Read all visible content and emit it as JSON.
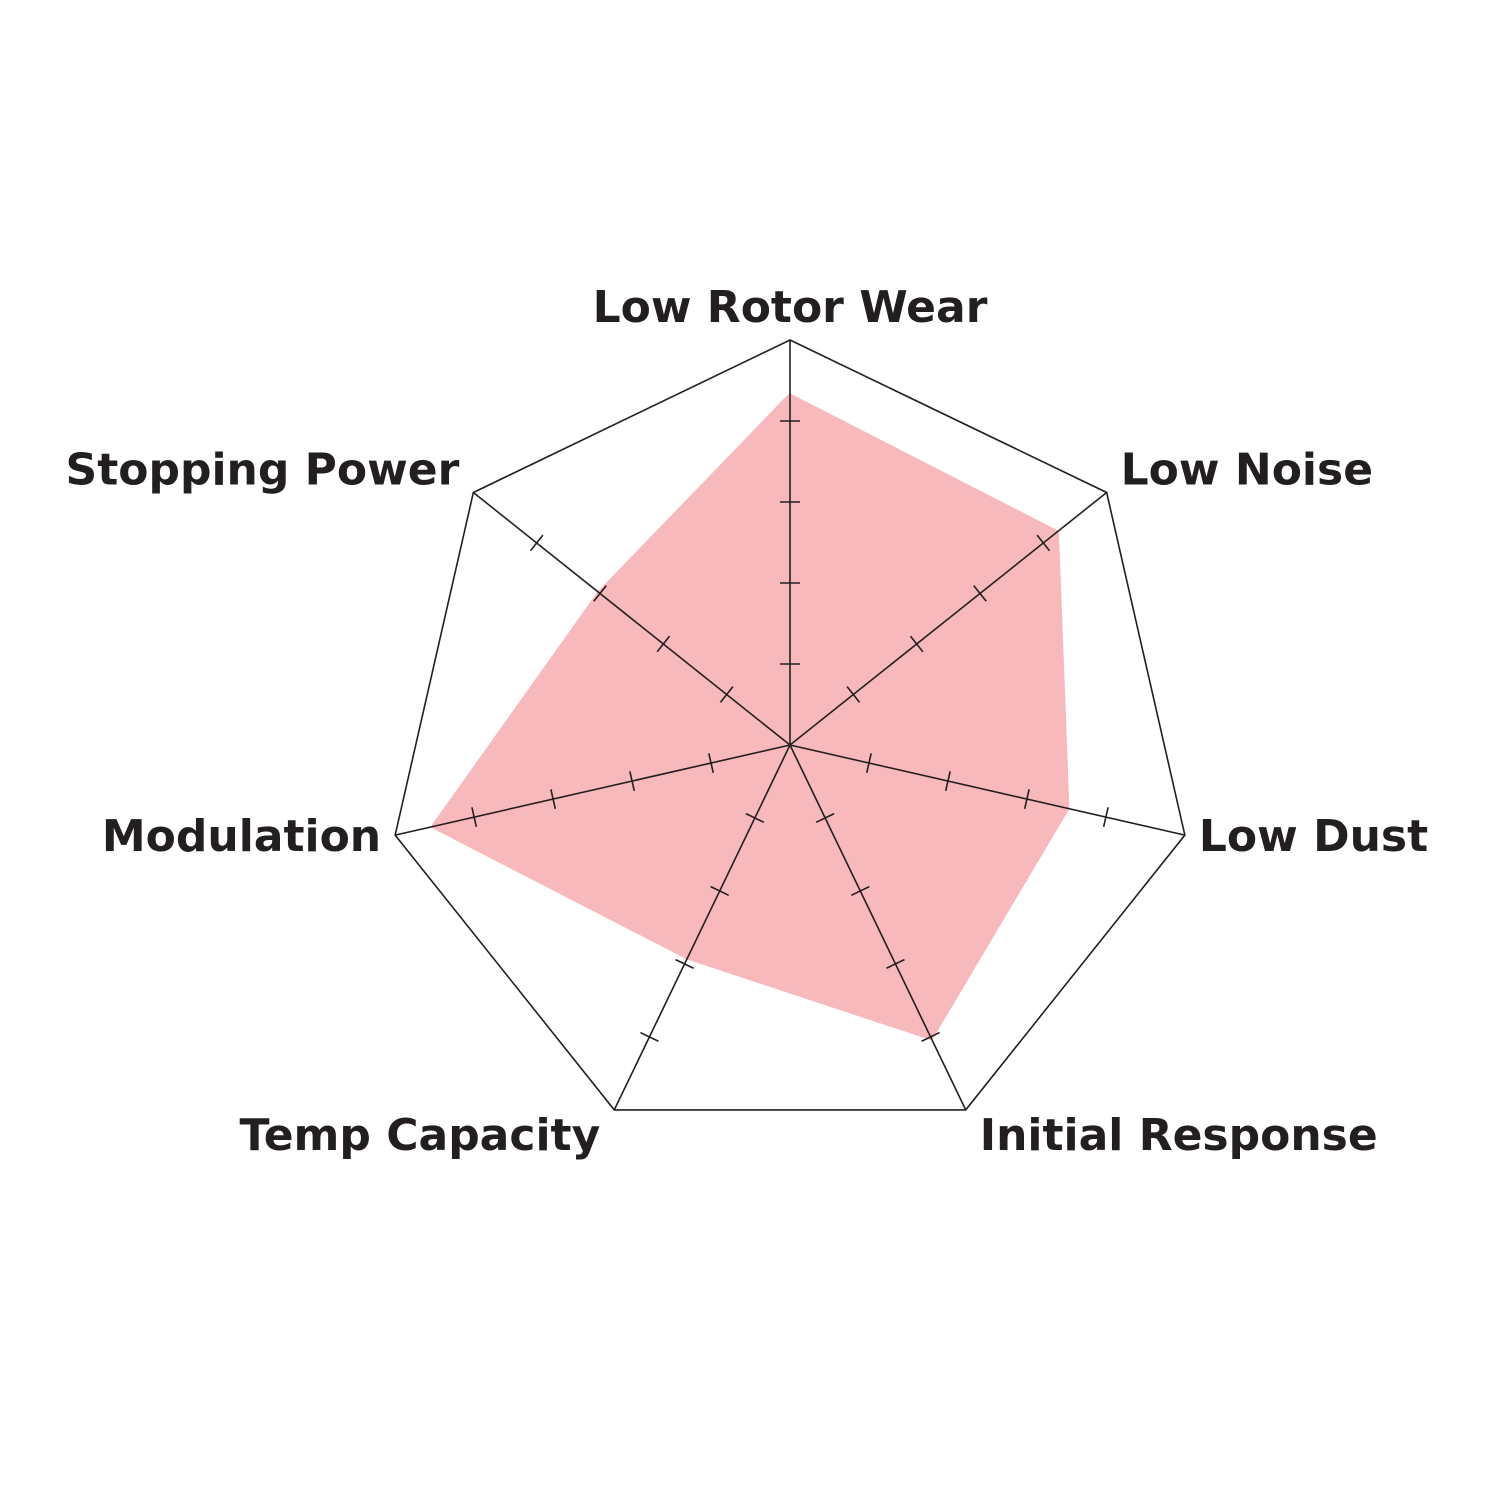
{
  "chart_data": {
    "type": "radar",
    "title": "",
    "axes": [
      "Low Rotor Wear",
      "Low Noise",
      "Low Dust",
      "Initial Response",
      "Temp Capacity",
      "Modulation",
      "Stopping Power"
    ],
    "values": [
      4.3,
      4.2,
      3.5,
      4.0,
      2.9,
      4.5,
      3.0
    ],
    "range": [
      0,
      5
    ],
    "ticks": [
      1,
      2,
      3,
      4,
      5
    ],
    "grid": "outer heptagon only, tick marks on spokes",
    "colors": {
      "fill": "#f8b9bc",
      "lines": "#231f20",
      "text": "#231f20"
    }
  }
}
